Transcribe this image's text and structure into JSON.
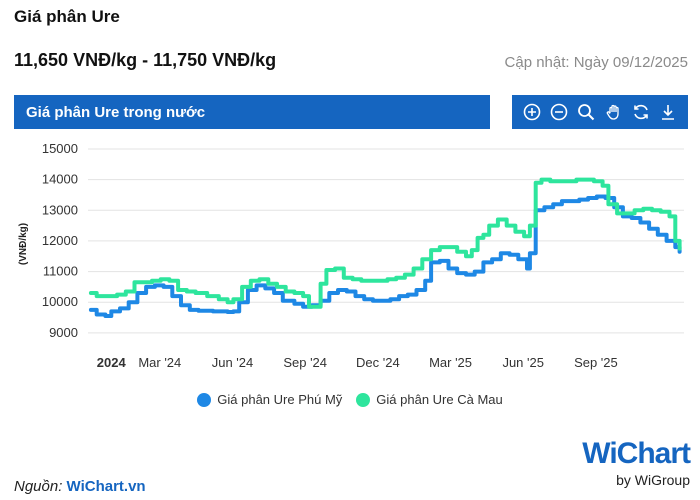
{
  "header": {
    "title": "Giá phân Ure",
    "price_range": "11,650 VNĐ/kg - 11,750 VNĐ/kg",
    "updated": "Cập nhật: Ngày 09/12/2025"
  },
  "chart_header": {
    "title": "Giá phân Ure trong nước"
  },
  "toolbar": {
    "icons": [
      "zoom-in-icon",
      "zoom-out-icon",
      "magnifier-icon",
      "hand-pan-icon",
      "reset-icon",
      "download-icon"
    ]
  },
  "source": {
    "label": "Nguồn:",
    "link": "WiChart.vn"
  },
  "logo": {
    "main": "WiChart",
    "sub": "by WiGroup"
  },
  "colors": {
    "phu_my": "#1e88e5",
    "ca_mau": "#2ee59d",
    "header": "#1565c0"
  },
  "chart_data": {
    "type": "line",
    "ylabel": "(VNĐ/kg)",
    "ylim": [
      8800,
      15000
    ],
    "yticks": [
      9000,
      10000,
      11000,
      12000,
      13000,
      14000,
      15000
    ],
    "xlim": [
      2023.92,
      2025.97
    ],
    "xticks": [
      {
        "x": 2024.0,
        "label": "2024",
        "bold": true
      },
      {
        "x": 2024.167,
        "label": "Mar '24"
      },
      {
        "x": 2024.417,
        "label": "Jun '24"
      },
      {
        "x": 2024.667,
        "label": "Sep '24"
      },
      {
        "x": 2024.917,
        "label": "Dec '24"
      },
      {
        "x": 2025.167,
        "label": "Mar '25"
      },
      {
        "x": 2025.417,
        "label": "Jun '25"
      },
      {
        "x": 2025.667,
        "label": "Sep '25"
      }
    ],
    "grid": true,
    "legend_position": "bottom-center",
    "series": [
      {
        "name": "Giá phân Ure Phú Mỹ",
        "color": "#1e88e5",
        "points": [
          [
            2023.93,
            9750
          ],
          [
            2023.95,
            9600
          ],
          [
            2023.98,
            9550
          ],
          [
            2024.0,
            9700
          ],
          [
            2024.03,
            9800
          ],
          [
            2024.06,
            10000
          ],
          [
            2024.09,
            10300
          ],
          [
            2024.12,
            10500
          ],
          [
            2024.15,
            10550
          ],
          [
            2024.18,
            10500
          ],
          [
            2024.21,
            10200
          ],
          [
            2024.24,
            9900
          ],
          [
            2024.27,
            9750
          ],
          [
            2024.3,
            9720
          ],
          [
            2024.35,
            9700
          ],
          [
            2024.4,
            9680
          ],
          [
            2024.42,
            9700
          ],
          [
            2024.44,
            10000
          ],
          [
            2024.47,
            10400
          ],
          [
            2024.5,
            10550
          ],
          [
            2024.53,
            10450
          ],
          [
            2024.56,
            10300
          ],
          [
            2024.59,
            10050
          ],
          [
            2024.63,
            9950
          ],
          [
            2024.66,
            9850
          ],
          [
            2024.69,
            9900
          ],
          [
            2024.72,
            10050
          ],
          [
            2024.75,
            10300
          ],
          [
            2024.78,
            10400
          ],
          [
            2024.81,
            10350
          ],
          [
            2024.84,
            10200
          ],
          [
            2024.87,
            10100
          ],
          [
            2024.9,
            10050
          ],
          [
            2024.93,
            10050
          ],
          [
            2024.96,
            10100
          ],
          [
            2024.99,
            10200
          ],
          [
            2025.02,
            10250
          ],
          [
            2025.05,
            10400
          ],
          [
            2025.08,
            10700
          ],
          [
            2025.1,
            11300
          ],
          [
            2025.13,
            11350
          ],
          [
            2025.16,
            11100
          ],
          [
            2025.19,
            10950
          ],
          [
            2025.22,
            10900
          ],
          [
            2025.25,
            11000
          ],
          [
            2025.28,
            11300
          ],
          [
            2025.31,
            11400
          ],
          [
            2025.34,
            11600
          ],
          [
            2025.37,
            11550
          ],
          [
            2025.4,
            11400
          ],
          [
            2025.43,
            11100
          ],
          [
            2025.44,
            11600
          ],
          [
            2025.46,
            13000
          ],
          [
            2025.49,
            13100
          ],
          [
            2025.52,
            13200
          ],
          [
            2025.55,
            13300
          ],
          [
            2025.58,
            13300
          ],
          [
            2025.61,
            13350
          ],
          [
            2025.64,
            13400
          ],
          [
            2025.67,
            13450
          ],
          [
            2025.7,
            13400
          ],
          [
            2025.73,
            13100
          ],
          [
            2025.76,
            12800
          ],
          [
            2025.79,
            12750
          ],
          [
            2025.82,
            12600
          ],
          [
            2025.85,
            12400
          ],
          [
            2025.88,
            12200
          ],
          [
            2025.91,
            12000
          ],
          [
            2025.94,
            11800
          ],
          [
            2025.955,
            11650
          ]
        ]
      },
      {
        "name": "Giá phân Ure Cà Mau",
        "color": "#2ee59d",
        "points": [
          [
            2023.93,
            10300
          ],
          [
            2023.95,
            10200
          ],
          [
            2023.98,
            10200
          ],
          [
            2024.02,
            10250
          ],
          [
            2024.05,
            10350
          ],
          [
            2024.08,
            10650
          ],
          [
            2024.11,
            10650
          ],
          [
            2024.14,
            10700
          ],
          [
            2024.17,
            10750
          ],
          [
            2024.2,
            10700
          ],
          [
            2024.23,
            10400
          ],
          [
            2024.26,
            10350
          ],
          [
            2024.29,
            10300
          ],
          [
            2024.33,
            10200
          ],
          [
            2024.37,
            10100
          ],
          [
            2024.4,
            10000
          ],
          [
            2024.42,
            10100
          ],
          [
            2024.45,
            10500
          ],
          [
            2024.48,
            10700
          ],
          [
            2024.51,
            10750
          ],
          [
            2024.54,
            10600
          ],
          [
            2024.57,
            10500
          ],
          [
            2024.6,
            10350
          ],
          [
            2024.63,
            10300
          ],
          [
            2024.66,
            10200
          ],
          [
            2024.68,
            9850
          ],
          [
            2024.7,
            9850
          ],
          [
            2024.72,
            10600
          ],
          [
            2024.74,
            11050
          ],
          [
            2024.77,
            11100
          ],
          [
            2024.8,
            10800
          ],
          [
            2024.83,
            10750
          ],
          [
            2024.86,
            10700
          ],
          [
            2024.89,
            10700
          ],
          [
            2024.92,
            10700
          ],
          [
            2024.95,
            10750
          ],
          [
            2024.98,
            10800
          ],
          [
            2025.01,
            10900
          ],
          [
            2025.04,
            11100
          ],
          [
            2025.07,
            11400
          ],
          [
            2025.1,
            11700
          ],
          [
            2025.13,
            11800
          ],
          [
            2025.16,
            11800
          ],
          [
            2025.19,
            11650
          ],
          [
            2025.22,
            11500
          ],
          [
            2025.24,
            11700
          ],
          [
            2025.26,
            12100
          ],
          [
            2025.28,
            12200
          ],
          [
            2025.3,
            12500
          ],
          [
            2025.33,
            12700
          ],
          [
            2025.36,
            12500
          ],
          [
            2025.39,
            12300
          ],
          [
            2025.42,
            12150
          ],
          [
            2025.44,
            12500
          ],
          [
            2025.46,
            13900
          ],
          [
            2025.48,
            14000
          ],
          [
            2025.51,
            13950
          ],
          [
            2025.54,
            13950
          ],
          [
            2025.57,
            13950
          ],
          [
            2025.6,
            14000
          ],
          [
            2025.63,
            14000
          ],
          [
            2025.66,
            13950
          ],
          [
            2025.69,
            13800
          ],
          [
            2025.71,
            13200
          ],
          [
            2025.74,
            12900
          ],
          [
            2025.77,
            12900
          ],
          [
            2025.8,
            13000
          ],
          [
            2025.83,
            13050
          ],
          [
            2025.86,
            13000
          ],
          [
            2025.89,
            12950
          ],
          [
            2025.92,
            12800
          ],
          [
            2025.94,
            12000
          ],
          [
            2025.955,
            11750
          ]
        ]
      }
    ]
  }
}
